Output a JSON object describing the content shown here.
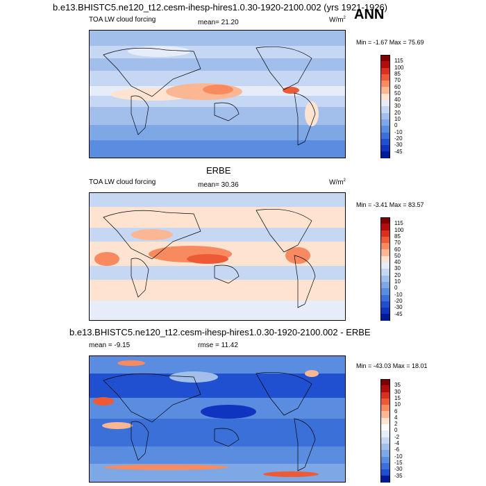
{
  "header": {
    "title": "b.e13.BHISTC5.ne120_t12.cesm-ihesp-hires1.0.30-1920-2100.002 (yrs 1921-1926)",
    "season": "ANN"
  },
  "panels": [
    {
      "title": "",
      "left_label": "TOA LW cloud forcing",
      "center_label": "mean=  21.20",
      "units_base": "W/m",
      "units_sup": "2",
      "minmax": "Min =  -1.67 Max =  75.69"
    },
    {
      "title": "ERBE",
      "left_label": "TOA LW cloud forcing",
      "center_label": "mean=  30.36",
      "units_base": "W/m",
      "units_sup": "2",
      "minmax": "Min =  -3.41 Max =  83.57"
    },
    {
      "title": "b.e13.BHISTC5.ne120_t12.cesm-ihesp-hires1.0.30-1920-2100.002 - ERBE",
      "left_label": "mean =  -9.15",
      "center_label": "rmse =  11.42",
      "units_base": "",
      "units_sup": "",
      "minmax": "Min = -43.03 Max =  18.01"
    }
  ],
  "colorbars": {
    "field": {
      "labels": [
        "115",
        "100",
        "85",
        "70",
        "60",
        "50",
        "40",
        "30",
        "20",
        "10",
        "0",
        "-10",
        "-20",
        "-30",
        "-45"
      ],
      "colors": [
        "#7f0000",
        "#b30c0c",
        "#d9301f",
        "#ef5a36",
        "#f78a5e",
        "#fbb693",
        "#fde3d0",
        "#e6ecf8",
        "#c5d7f2",
        "#a2bfec",
        "#7ea7e6",
        "#5a8de0",
        "#3b70d9",
        "#2050d0",
        "#1034c0",
        "#001a99"
      ]
    },
    "diff": {
      "labels": [
        "35",
        "30",
        "15",
        "10",
        "6",
        "4",
        "2",
        "0",
        "-2",
        "-4",
        "-6",
        "-10",
        "-15",
        "-30",
        "-35"
      ],
      "colors": [
        "#7f0000",
        "#b30c0c",
        "#d9301f",
        "#ef5a36",
        "#f78a5e",
        "#fbb693",
        "#fde3d0",
        "#ffffff",
        "#e6ecf8",
        "#c5d7f2",
        "#a2bfec",
        "#7ea7e6",
        "#5a8de0",
        "#3b70d9",
        "#2050d0",
        "#001a99"
      ]
    }
  }
}
